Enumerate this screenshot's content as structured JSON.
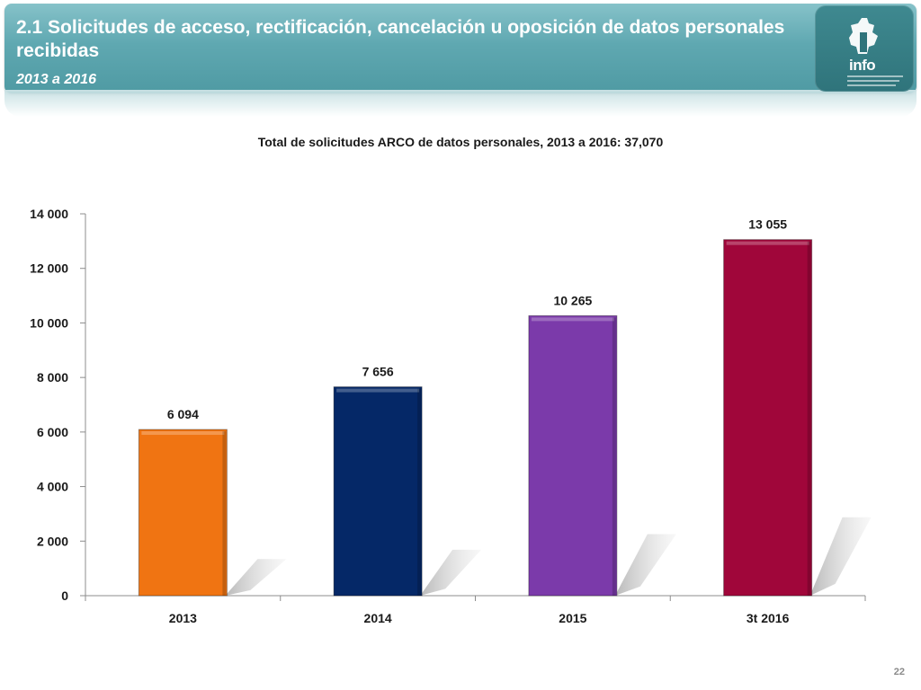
{
  "header": {
    "title": "2.1 Solicitudes de acceso, rectificación, cancelación u oposición de datos personales recibidas",
    "subtitle": "2013 a 2016",
    "logo_text": "info"
  },
  "colors": {
    "bar_2013": "#f07412",
    "bar_2014": "#052867",
    "bar_2015": "#7b3aaa",
    "bar_2016": "#a0063a"
  },
  "chart_data": {
    "type": "bar",
    "title": "Total de solicitudes ARCO de datos personales, 2013 a 2016: 37,070",
    "categories": [
      "2013",
      "2014",
      "2015",
      "3t 2016"
    ],
    "values": [
      6094,
      7656,
      10265,
      13055
    ],
    "value_labels": [
      "6 094",
      "7 656",
      "10 265",
      "13 055"
    ],
    "yticks": [
      0,
      2000,
      4000,
      6000,
      8000,
      10000,
      12000,
      14000
    ],
    "ytick_labels": [
      "0",
      "2 000",
      "4 000",
      "6 000",
      "8 000",
      "10 000",
      "12 000",
      "14 000"
    ],
    "ylim": [
      0,
      14000
    ],
    "xlabel": "",
    "ylabel": "",
    "grid": false,
    "legend": "none"
  },
  "page_number": "22"
}
